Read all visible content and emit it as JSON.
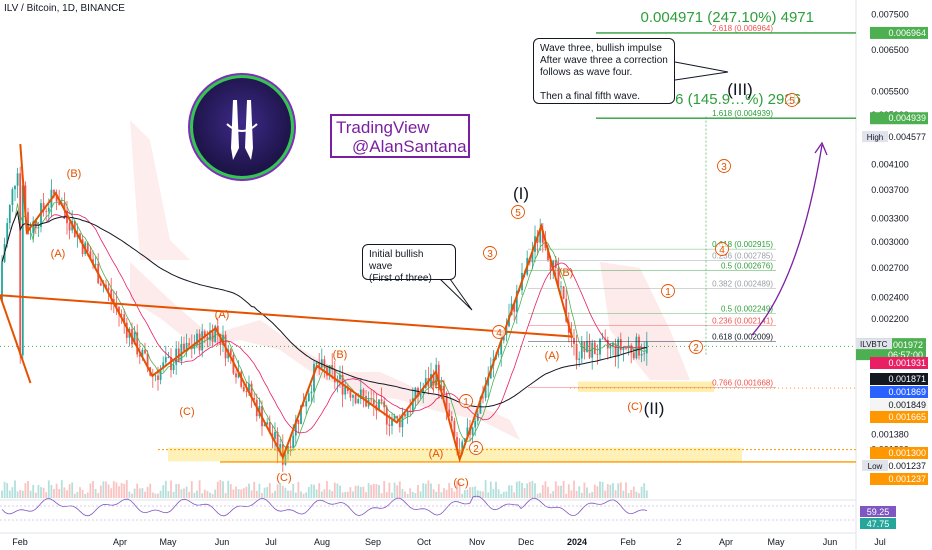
{
  "header": {
    "symbol_line": "ILV / Bitcoin, 1D, BINANCE"
  },
  "colors": {
    "up_candle": "#26a69a",
    "down_candle": "#ef5350",
    "wave_lines": "#e65100",
    "target_lines": "#2e9e3a",
    "ema_dark": "#131722",
    "annotation_purple": "#7b1fa2",
    "support_band": "#fdd835",
    "price_badge": "#4caf50"
  },
  "watermark": {
    "line1": "TradingView",
    "line2": "@AlanSantana"
  },
  "notes": {
    "wave_three": [
      "Wave three, bullish impulse",
      "After wave three a correction",
      "follows as wave four.",
      "",
      "Then a final fifth wave."
    ],
    "initial_wave": [
      "Initial bullish wave",
      "(First of three)"
    ]
  },
  "targets": {
    "big_label_top": "0.004971 (247.10%) 4971",
    "big_label_mid": "6 (145.9…%) 2926",
    "wave_iii": "(III)"
  },
  "fib_labels": [
    {
      "text": "2.618 (0.006964)",
      "price": 0.006964,
      "color": "#ef5350"
    },
    {
      "text": "1.618 (0.004939)",
      "price": 0.004939,
      "color": "#2e9e3a"
    },
    {
      "text": "0.618 (0.002915)",
      "price": 0.002915,
      "color": "#2e9e3a"
    },
    {
      "text": "0.236 (0.002785)",
      "price": 0.002785,
      "color": "#9aa0a6"
    },
    {
      "text": "0.5 (0.002676)",
      "price": 0.002676,
      "color": "#2e9e3a"
    },
    {
      "text": "0.382 (0.002489)",
      "price": 0.002489,
      "color": "#9aa0a6"
    },
    {
      "text": "0.5 (0.002249)",
      "price": 0.002249,
      "color": "#2e9e3a"
    },
    {
      "text": "0.236 (0.002141)",
      "price": 0.002141,
      "color": "#ef5350"
    },
    {
      "text": "0.618 (0.002009)",
      "price": 0.002009,
      "color": "#131722"
    },
    {
      "text": "0.766 (0.001668)",
      "price": 0.001668,
      "color": "#ef5350"
    }
  ],
  "chart_data": {
    "type": "candlestick",
    "title": "ILV / Bitcoin, 1D, BINANCE",
    "x_ticks": [
      "Feb",
      "Apr",
      "May",
      "Jun",
      "Jul",
      "Aug",
      "Sep",
      "Oct",
      "Nov",
      "Dec",
      "2024",
      "Feb",
      "2",
      "Apr",
      "May",
      "Jun",
      "Jul"
    ],
    "y_ticks": [
      "0.007500",
      "0.006500",
      "0.005500",
      "0.005000",
      "0.004100",
      "0.003700",
      "0.003300",
      "0.003000",
      "0.002700",
      "0.002400",
      "0.002200",
      "0.001380",
      "0.001300"
    ],
    "y_scale": "log",
    "ylim": [
      0.00115,
      0.0077
    ],
    "price_badges": [
      {
        "text": "0.006964",
        "price": 0.006964,
        "bg": "#4caf50"
      },
      {
        "text": "0.004939",
        "price": 0.004939,
        "bg": "#4caf50"
      },
      {
        "text": "High",
        "text2": "0.004577",
        "price": 0.004577,
        "bg": "#e0e3eb"
      },
      {
        "text": "ILVBTC",
        "text2": "0.001972",
        "text3": "06:57:00",
        "price": 0.001972,
        "bg": "#4caf50"
      },
      {
        "text": "0.001931",
        "price": 0.001931,
        "bg": "#e91e63"
      },
      {
        "text": "0.001871",
        "price": 0.001871,
        "bg": "#131722"
      },
      {
        "text": "0.001869",
        "price": 0.001869,
        "bg": "#2962ff"
      },
      {
        "text": "0.001849",
        "price": 0.001849,
        "bg": "#f5f5f5"
      },
      {
        "text": "0.001665",
        "price": 0.001665,
        "bg": "#ff9800"
      },
      {
        "text": "0.001300",
        "price": 0.0013,
        "bg": "#ff9800"
      },
      {
        "text": "Low",
        "text2": "0.001237",
        "price": 0.001237,
        "bg": "#e0e3eb"
      },
      {
        "text": "0.001237",
        "price": 0.00118,
        "bg": "#ff9800"
      }
    ],
    "rsi": {
      "values_shown": [
        "59.25",
        "47.75"
      ]
    },
    "wave_path_points": [
      {
        "date": "Jan 20",
        "price": 0.00445
      },
      {
        "date": "Feb 05",
        "price": 0.00312
      },
      {
        "date": "Feb 22",
        "price": 0.00365
      },
      {
        "date": "Apr 20",
        "price": 0.00175
      },
      {
        "date": "May 29",
        "price": 0.00212
      },
      {
        "date": "Jul 08",
        "price": 0.00126
      },
      {
        "date": "Jul 28",
        "price": 0.00182
      },
      {
        "date": "Sep 15",
        "price": 0.00145
      },
      {
        "date": "Oct 08",
        "price": 0.00178
      },
      {
        "date": "Oct 22",
        "price": 0.00125
      },
      {
        "date": "Dec 10",
        "price": 0.0032
      },
      {
        "date": "Dec 28",
        "price": 0.00205
      },
      {
        "date": "Jan 08",
        "price": 0.00242
      },
      {
        "date": "Jan 26",
        "price": 0.0017
      }
    ],
    "wave_labels": [
      "(B)",
      "(A)",
      "(A)",
      "(C)",
      "(C)",
      "(B)",
      "(B)",
      "(A)",
      "(C)",
      "(I)",
      "5",
      "3",
      "4",
      "(B)",
      "(A)",
      "(C)",
      "(II)",
      "1",
      "2",
      "3",
      "4",
      "5",
      "1",
      "2",
      "(III)"
    ]
  }
}
